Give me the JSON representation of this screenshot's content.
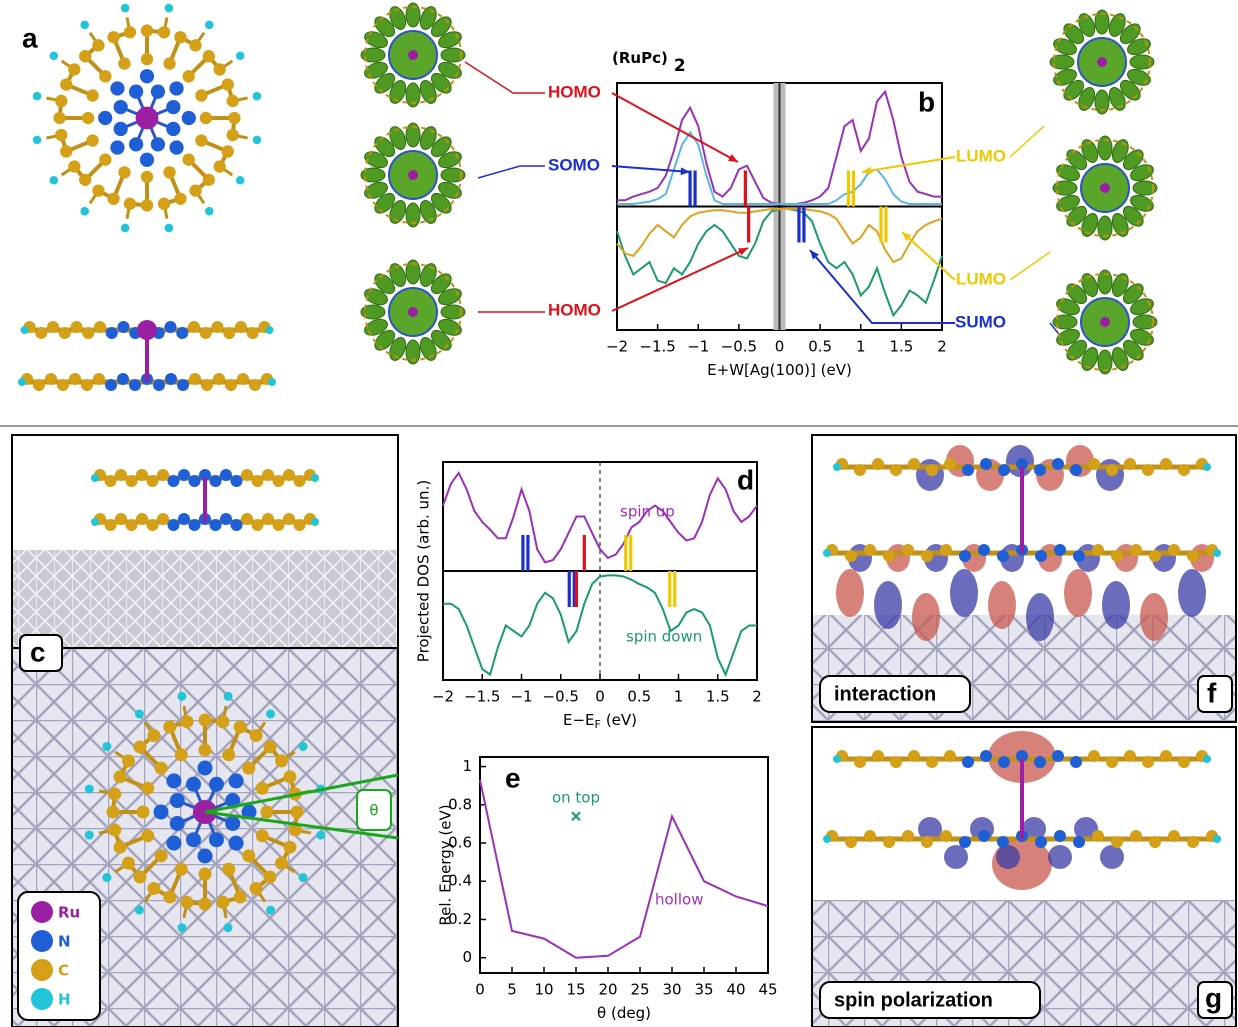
{
  "figure": {
    "panel_a": "a",
    "panel_c": "c",
    "panel_f": "f",
    "panel_g": "g",
    "theta": "θ",
    "box_f": "interaction",
    "box_g": "spin polarization",
    "legend": [
      {
        "name": "Ru",
        "color": "#9a1fa3"
      },
      {
        "name": "N",
        "color": "#1f5fd6"
      },
      {
        "name": "C",
        "color": "#d4a017"
      },
      {
        "name": "H",
        "color": "#22c4d8"
      }
    ]
  },
  "chart_data": [
    {
      "type": "line",
      "panel": "b",
      "title": "(RuPc)",
      "title_sub": "2",
      "xlabel": "E+W[Ag(100)] (eV)",
      "xlim": [
        -2,
        2
      ],
      "ylim": [
        -1,
        1
      ],
      "xticks": [
        {
          "value": -2,
          "label": "−2"
        },
        {
          "value": -1.5,
          "label": "−1.5"
        },
        {
          "value": -1,
          "label": "−1"
        },
        {
          "value": -0.5,
          "label": "−0.5"
        },
        0,
        0.5,
        1,
        1.5,
        2
      ],
      "x": [
        -2,
        -1.9,
        -1.8,
        -1.7,
        -1.6,
        -1.5,
        -1.4,
        -1.3,
        -1.2,
        -1.1,
        -1,
        -0.9,
        -0.8,
        -0.7,
        -0.6,
        -0.5,
        -0.4,
        -0.3,
        -0.2,
        -0.1,
        0,
        0.1,
        0.2,
        0.3,
        0.4,
        0.5,
        0.6,
        0.7,
        0.8,
        0.9,
        1,
        1.1,
        1.2,
        1.3,
        1.4,
        1.5,
        1.6,
        1.7,
        1.8,
        1.9,
        2
      ],
      "series": [
        {
          "color": "#9b30b8",
          "values": [
            0.05,
            0.05,
            0.08,
            0.1,
            0.12,
            0.15,
            0.25,
            0.45,
            0.7,
            0.8,
            0.65,
            0.35,
            0.12,
            0.08,
            0.15,
            0.3,
            0.33,
            0.2,
            0.07,
            0.03,
            0.02,
            0.02,
            0.02,
            0.03,
            0.05,
            0.08,
            0.15,
            0.4,
            0.65,
            0.7,
            0.45,
            0.55,
            0.85,
            0.93,
            0.7,
            0.4,
            0.2,
            0.12,
            0.1,
            0.08,
            0.08
          ]
        },
        {
          "color": "#5cb6e2",
          "values": [
            0.02,
            0.02,
            0.02,
            0.03,
            0.04,
            0.06,
            0.1,
            0.3,
            0.5,
            0.6,
            0.5,
            0.25,
            0.05,
            0.02,
            0.02,
            0.02,
            0.02,
            0.02,
            0.02,
            0.02,
            0.02,
            0.02,
            0.02,
            0.02,
            0.02,
            0.02,
            0.02,
            0.05,
            0.1,
            0.12,
            0.18,
            0.28,
            0.3,
            0.22,
            0.1,
            0.04,
            0.02,
            0.02,
            0.02,
            0.02,
            0.02
          ]
        },
        {
          "color": "#1a9a6e",
          "values": [
            -0.2,
            -0.4,
            -0.55,
            -0.5,
            -0.45,
            -0.6,
            -0.62,
            -0.5,
            -0.55,
            -0.45,
            -0.3,
            -0.2,
            -0.15,
            -0.2,
            -0.3,
            -0.4,
            -0.42,
            -0.3,
            -0.12,
            -0.04,
            -0.02,
            -0.02,
            -0.03,
            -0.05,
            -0.12,
            -0.3,
            -0.45,
            -0.5,
            -0.45,
            -0.55,
            -0.72,
            -0.65,
            -0.5,
            -0.7,
            -0.88,
            -0.8,
            -0.68,
            -0.72,
            -0.78,
            -0.6,
            -0.4
          ]
        },
        {
          "color": "#e0a020",
          "values": [
            -0.3,
            -0.38,
            -0.4,
            -0.32,
            -0.22,
            -0.15,
            -0.2,
            -0.25,
            -0.15,
            -0.08,
            -0.05,
            -0.04,
            -0.03,
            -0.03,
            -0.04,
            -0.05,
            -0.05,
            -0.04,
            -0.03,
            -0.02,
            -0.02,
            -0.02,
            -0.02,
            -0.02,
            -0.03,
            -0.04,
            -0.06,
            -0.1,
            -0.2,
            -0.3,
            -0.25,
            -0.15,
            -0.2,
            -0.35,
            -0.45,
            -0.42,
            -0.3,
            -0.2,
            -0.15,
            -0.12,
            -0.1
          ]
        }
      ],
      "levels": [
        {
          "x": -1.07,
          "color": "#1a2fd0",
          "double": true,
          "spin": "up"
        },
        {
          "x": -0.42,
          "color": "#e0101a",
          "double": false,
          "spin": "up"
        },
        {
          "x": 0.88,
          "color": "#f0c800",
          "double": true,
          "spin": "up"
        },
        {
          "x": -0.38,
          "color": "#e0101a",
          "double": false,
          "spin": "down"
        },
        {
          "x": 0.27,
          "color": "#1a2fd0",
          "double": true,
          "spin": "down"
        },
        {
          "x": 1.28,
          "color": "#f0c800",
          "double": true,
          "spin": "down"
        }
      ],
      "annotations": [
        {
          "text": "HOMO",
          "color": "#e0101a"
        },
        {
          "text": "SOMO",
          "color": "#1a2fd0"
        },
        {
          "text": "HOMO",
          "color": "#e0101a"
        },
        {
          "text": "LUMO",
          "color": "#f0c800"
        },
        {
          "text": "LUMO",
          "color": "#f0c800"
        },
        {
          "text": "SUMO",
          "color": "#1a2fd0"
        }
      ]
    },
    {
      "type": "line",
      "panel": "d",
      "xlabel": "E−E",
      "xlabel_sub": "F",
      "xlabel_unit": "(eV)",
      "ylabel": "Projected DOS (arb. un.)",
      "xlim": [
        -2,
        2
      ],
      "ylim": [
        -1,
        1
      ],
      "xticks": [
        {
          "value": -2,
          "label": "−2"
        },
        {
          "value": -1.5,
          "label": "−1.5"
        },
        {
          "value": -1,
          "label": "−1"
        },
        {
          "value": -0.5,
          "label": "−0.5"
        },
        0,
        0.5,
        1,
        1.5,
        2
      ],
      "x": [
        -2,
        -1.9,
        -1.8,
        -1.7,
        -1.6,
        -1.5,
        -1.4,
        -1.3,
        -1.2,
        -1.1,
        -1,
        -0.9,
        -0.8,
        -0.7,
        -0.6,
        -0.5,
        -0.4,
        -0.3,
        -0.2,
        -0.1,
        0,
        0.1,
        0.2,
        0.3,
        0.4,
        0.5,
        0.6,
        0.7,
        0.8,
        0.9,
        1,
        1.1,
        1.2,
        1.3,
        1.4,
        1.5,
        1.6,
        1.7,
        1.8,
        1.9,
        2
      ],
      "series": [
        {
          "name": "spin up",
          "color": "#9b30b8",
          "values": [
            0.6,
            0.8,
            0.9,
            0.75,
            0.55,
            0.45,
            0.38,
            0.3,
            0.3,
            0.5,
            0.75,
            0.55,
            0.2,
            0.08,
            0.1,
            0.2,
            0.35,
            0.5,
            0.5,
            0.35,
            0.2,
            0.12,
            0.15,
            0.25,
            0.4,
            0.45,
            0.55,
            0.6,
            0.55,
            0.45,
            0.35,
            0.28,
            0.3,
            0.45,
            0.7,
            0.85,
            0.75,
            0.55,
            0.45,
            0.5,
            0.6
          ]
        },
        {
          "name": "spin down",
          "color": "#1a9a6e",
          "values": [
            -0.3,
            -0.3,
            -0.35,
            -0.5,
            -0.7,
            -0.9,
            -0.95,
            -0.7,
            -0.5,
            -0.55,
            -0.6,
            -0.5,
            -0.3,
            -0.2,
            -0.25,
            -0.4,
            -0.65,
            -0.55,
            -0.3,
            -0.12,
            -0.05,
            -0.04,
            -0.04,
            -0.05,
            -0.08,
            -0.12,
            -0.15,
            -0.2,
            -0.35,
            -0.55,
            -0.5,
            -0.38,
            -0.35,
            -0.38,
            -0.5,
            -0.8,
            -0.95,
            -0.75,
            -0.55,
            -0.5,
            -0.5
          ]
        }
      ],
      "levels": [
        {
          "x": -0.95,
          "color": "#1a2fd0",
          "double": true,
          "spin": "up"
        },
        {
          "x": -0.2,
          "color": "#e0101a",
          "double": false,
          "spin": "up"
        },
        {
          "x": 0.36,
          "color": "#f0c800",
          "double": true,
          "spin": "up"
        },
        {
          "x": -0.36,
          "color": "#1a2fd0",
          "double": true,
          "spin": "down"
        },
        {
          "x": -0.3,
          "color": "#e0101a",
          "double": false,
          "spin": "down"
        },
        {
          "x": 0.92,
          "color": "#f0c800",
          "double": true,
          "spin": "down"
        }
      ]
    },
    {
      "type": "line",
      "panel": "e",
      "xlabel": "θ (deg)",
      "ylabel": "Rel. Energy (eV)",
      "xlim": [
        0,
        45
      ],
      "ylim": [
        -0.08,
        1.05
      ],
      "xticks": [
        0,
        5,
        10,
        15,
        20,
        25,
        30,
        35,
        40,
        45
      ],
      "yticks": [
        0,
        0.2,
        0.4,
        0.6,
        0.8,
        1
      ],
      "x": [
        0,
        5,
        10,
        15,
        20,
        25,
        30,
        35,
        40,
        45
      ],
      "series": [
        {
          "name": "hollow",
          "color": "#9b30b8",
          "values": [
            0.93,
            0.14,
            0.1,
            0,
            0.01,
            0.11,
            0.74,
            0.4,
            0.32,
            0.27
          ]
        }
      ],
      "points": [
        {
          "name": "on top",
          "x": 15,
          "y": 0.74,
          "color": "#1a9a6e"
        }
      ]
    }
  ]
}
